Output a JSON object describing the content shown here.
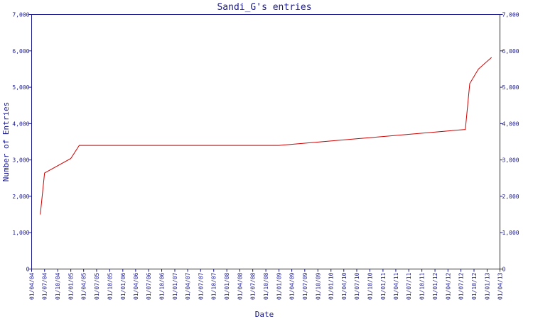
{
  "chart_data": {
    "type": "line",
    "title": "Sandi_G's entries",
    "xlabel": "Date",
    "ylabel": "Number of Entries",
    "ylim": [
      0,
      7000
    ],
    "y_ticks": [
      0,
      1000,
      2000,
      3000,
      4000,
      5000,
      6000,
      7000
    ],
    "y_tick_labels": [
      "0",
      "1,000",
      "2,000",
      "3,000",
      "4,000",
      "5,000",
      "6,000",
      "7,000"
    ],
    "x_tick_labels": [
      "01/04/04",
      "01/07/04",
      "01/10/04",
      "01/01/05",
      "01/04/05",
      "01/07/05",
      "01/10/05",
      "01/01/06",
      "01/04/06",
      "01/07/06",
      "01/10/06",
      "01/01/07",
      "01/04/07",
      "01/07/07",
      "01/10/07",
      "01/01/08",
      "01/04/08",
      "01/07/08",
      "01/10/08",
      "01/01/09",
      "01/04/09",
      "01/07/09",
      "01/10/09",
      "01/01/10",
      "01/04/10",
      "01/07/10",
      "01/10/10",
      "01/01/11",
      "01/04/11",
      "01/07/11",
      "01/10/11",
      "01/01/12",
      "01/04/12",
      "01/07/12",
      "01/10/12",
      "01/01/13",
      "01/04/13"
    ],
    "grid": false,
    "series_color": "#cc0000",
    "axis_color": "#1a1a8c",
    "series": [
      {
        "points": [
          {
            "x": "01/06/04",
            "y": 1500
          },
          {
            "x": "01/07/04",
            "y": 2640
          },
          {
            "x": "01/01/05",
            "y": 3040
          },
          {
            "x": "01/03/05",
            "y": 3400
          },
          {
            "x": "01/01/09",
            "y": 3400
          },
          {
            "x": "01/08/12",
            "y": 3840
          },
          {
            "x": "01/09/12",
            "y": 5100
          },
          {
            "x": "01/11/12",
            "y": 5500
          },
          {
            "x": "01/02/13",
            "y": 5820
          }
        ]
      }
    ]
  }
}
